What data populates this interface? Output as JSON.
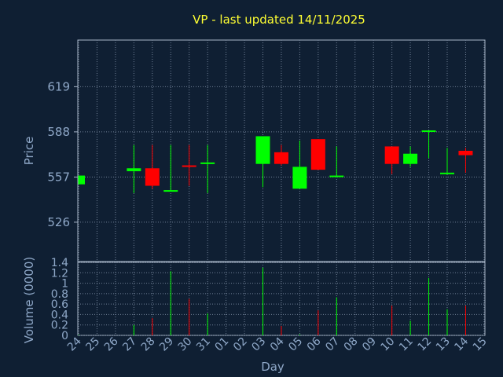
{
  "colors": {
    "background": "#0f1f33",
    "up": "#00ff00",
    "down": "#ff0000",
    "title": "#ffff33",
    "text": "#8fa8c8",
    "grid": "#6f7f95"
  },
  "chart_data": {
    "type": "candlestick",
    "title": "VP - last updated 14/11/2025",
    "xlabel": "Day",
    "ylabel": "Price",
    "volume_ylabel": "Volume (0000)",
    "x_ticks": [
      "24",
      "25",
      "26",
      "27",
      "28",
      "29",
      "30",
      "31",
      "01",
      "02",
      "03",
      "04",
      "05",
      "06",
      "07",
      "08",
      "09",
      "10",
      "11",
      "12",
      "13",
      "14",
      "15"
    ],
    "y_ticks": [
      526,
      557,
      588,
      619
    ],
    "ylim": [
      499,
      651
    ],
    "volume_ticks": [
      "0",
      "0.2",
      "0.4",
      "0.6",
      "0.8",
      "1",
      "1.2",
      "1.4"
    ],
    "volume_ylim": [
      0,
      1.4
    ],
    "grid": true,
    "candles": [
      {
        "x": "24",
        "open": 552,
        "close": 558,
        "high": 558,
        "low": 552,
        "volume": 0.01
      },
      {
        "x": "27",
        "open": 561,
        "close": 563,
        "high": 579,
        "low": 546,
        "volume": 0.2
      },
      {
        "x": "28",
        "open": 563,
        "close": 551,
        "high": 579,
        "low": 549,
        "volume": 0.33
      },
      {
        "x": "29",
        "open": 547,
        "close": 548,
        "high": 579,
        "low": 547,
        "volume": 1.23
      },
      {
        "x": "30",
        "open": 565,
        "close": 564,
        "high": 579,
        "low": 551,
        "volume": 0.7
      },
      {
        "x": "31",
        "open": 566,
        "close": 567,
        "high": 579,
        "low": 546,
        "volume": 0.42
      },
      {
        "x": "03",
        "open": 566,
        "close": 585,
        "high": 585,
        "low": 550,
        "volume": 1.3
      },
      {
        "x": "04",
        "open": 574,
        "close": 566,
        "high": 579,
        "low": 565,
        "volume": 0.18
      },
      {
        "x": "05",
        "open": 549,
        "close": 564,
        "high": 582,
        "low": 549,
        "volume": 0.02
      },
      {
        "x": "06",
        "open": 583,
        "close": 562,
        "high": 583,
        "low": 562,
        "volume": 0.48
      },
      {
        "x": "07",
        "open": 557,
        "close": 558,
        "high": 578,
        "low": 557,
        "volume": 0.73
      },
      {
        "x": "10",
        "open": 578,
        "close": 566,
        "high": 578,
        "low": 559,
        "volume": 0.57
      },
      {
        "x": "11",
        "open": 566,
        "close": 573,
        "high": 578,
        "low": 564,
        "volume": 0.28
      },
      {
        "x": "12",
        "open": 588,
        "close": 589,
        "high": 589,
        "low": 570,
        "volume": 1.1
      },
      {
        "x": "13",
        "open": 559,
        "close": 560,
        "high": 577,
        "low": 559,
        "volume": 0.5
      },
      {
        "x": "14",
        "open": 575,
        "close": 572,
        "high": 577,
        "low": 560,
        "volume": 0.57
      }
    ]
  }
}
